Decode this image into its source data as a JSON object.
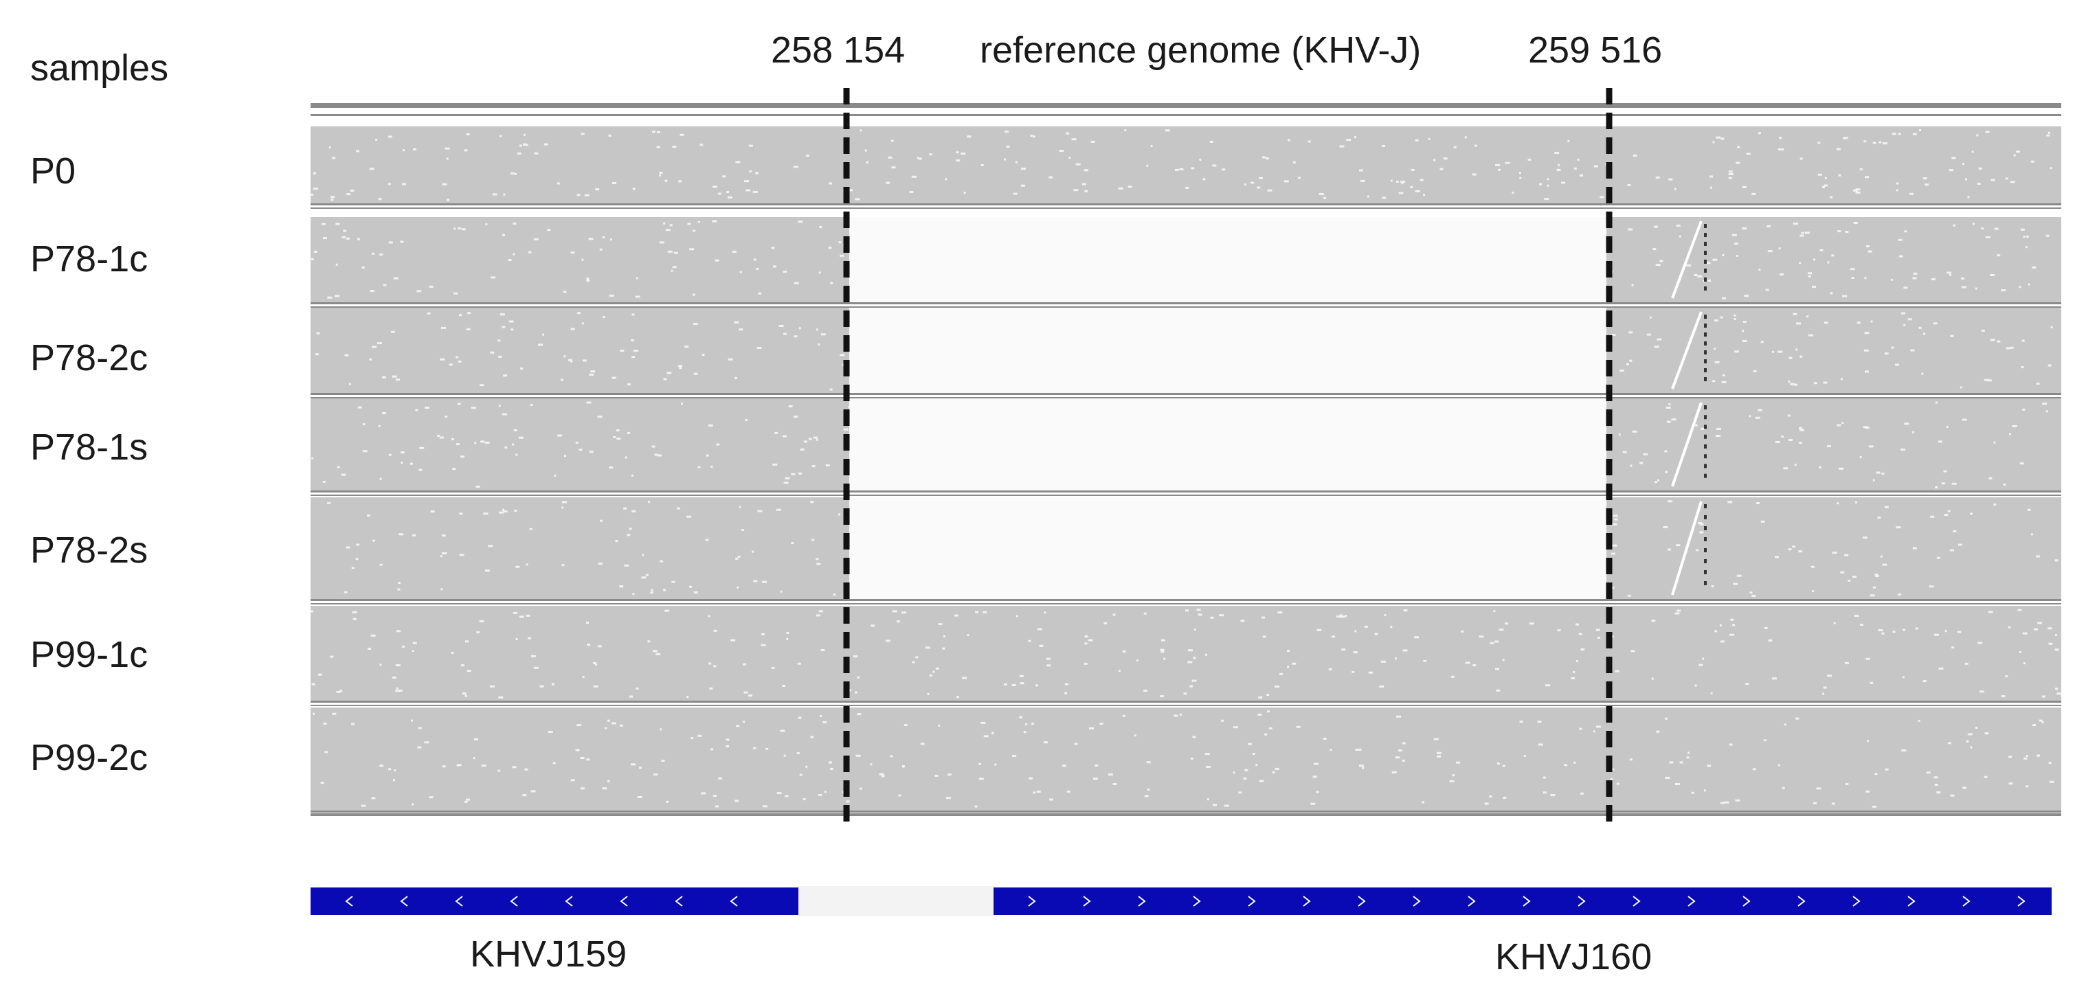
{
  "header": {
    "samples_label": "samples",
    "start_coordinate": "258 154",
    "reference_label": "reference genome (KHV-J)",
    "end_coordinate": "259 516"
  },
  "samples": [
    {
      "name": "P0",
      "deletion": false
    },
    {
      "name": "P78-1c",
      "deletion": true
    },
    {
      "name": "P78-2c",
      "deletion": true
    },
    {
      "name": "P78-1s",
      "deletion": true
    },
    {
      "name": "P78-2s",
      "deletion": true
    },
    {
      "name": "P99-1c",
      "deletion": false
    },
    {
      "name": "P99-2c",
      "deletion": false
    }
  ],
  "genes": [
    {
      "name": "KHVJ159",
      "strand": "-"
    },
    {
      "name": "KHVJ160",
      "strand": "+"
    }
  ],
  "colors": {
    "coverage": "#c6c6c6",
    "deleted": "#fafafa",
    "track_line": "#8a8a8a",
    "gene": "#0a0ab4",
    "boundary_line": "#111111",
    "text": "#1a1a1a"
  }
}
